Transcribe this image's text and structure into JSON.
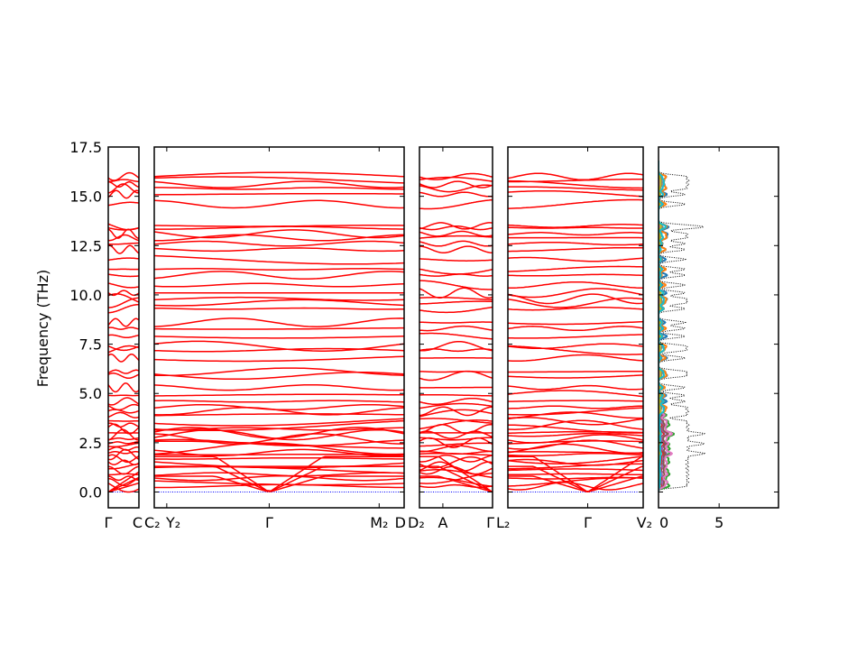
{
  "chart_data": {
    "type": "line",
    "title": "",
    "ylabel": "Frequency (THz)",
    "ylim": [
      -0.8,
      17.5
    ],
    "yticks": [
      "0.0",
      "2.5",
      "5.0",
      "7.5",
      "10.0",
      "12.5",
      "15.0",
      "17.5"
    ],
    "ytick_values": [
      0,
      2.5,
      5,
      7.5,
      10,
      12.5,
      15,
      17.5
    ],
    "band_color": "#ff0000",
    "zero_line_color": "#0000ff",
    "segments": [
      {
        "labels": [
          "Γ",
          "C"
        ],
        "label_pos": [
          0,
          1
        ]
      },
      {
        "labels": [
          "C₂",
          "Y₂",
          "Γ",
          "M₂",
          "D"
        ],
        "label_pos": [
          0,
          0.05,
          0.46,
          0.9,
          1
        ]
      },
      {
        "labels": [
          "D₂",
          "A",
          "Γ"
        ],
        "label_pos": [
          0,
          0.32,
          1
        ]
      },
      {
        "labels": [
          "L₂",
          "Γ",
          "V₂"
        ],
        "label_pos": [
          0,
          0.59,
          1
        ]
      }
    ],
    "band_levels_THz": [
      0.3,
      0.5,
      0.7,
      0.9,
      1.1,
      1.3,
      1.5,
      1.7,
      1.9,
      2.0,
      2.2,
      2.4,
      2.5,
      2.7,
      2.9,
      3.0,
      3.2,
      3.4,
      3.6,
      3.9,
      4.1,
      4.3,
      4.6,
      4.9,
      5.3,
      5.9,
      6.1,
      6.8,
      7.2,
      7.4,
      7.9,
      8.3,
      8.6,
      9.3,
      9.6,
      9.8,
      10.1,
      10.5,
      11.0,
      11.3,
      11.8,
      12.3,
      12.6,
      12.9,
      13.1,
      13.4,
      13.5,
      14.6,
      15.1,
      15.4,
      15.6,
      15.8,
      16.0
    ],
    "dos": {
      "xlim": [
        0,
        9.9
      ],
      "xticks": [
        "0",
        "5"
      ],
      "xtick_values": [
        0,
        5
      ],
      "total_style": "dotted",
      "total_color": "#000000",
      "partial_colors": [
        "#1f77b4",
        "#ff7f0e",
        "#2ca02c",
        "#d62728",
        "#9467bd",
        "#8c564b",
        "#e377c2",
        "#7f7f7f",
        "#bcbd22",
        "#17becf"
      ]
    }
  }
}
